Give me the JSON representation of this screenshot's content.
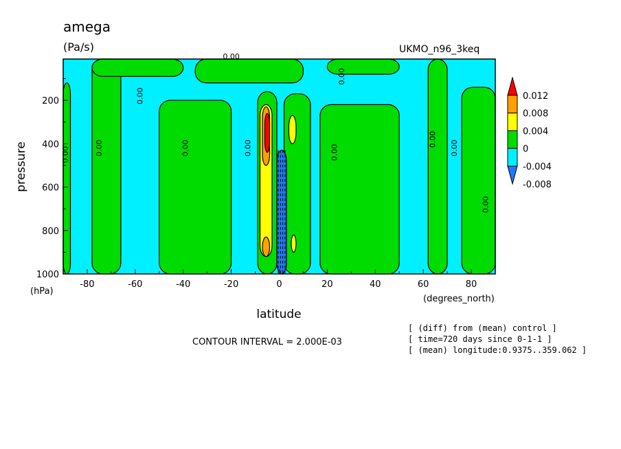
{
  "chart_data": {
    "type": "contour",
    "title": "amega",
    "units": "(Pa/s)",
    "model": "UKMO_n96_3keq",
    "xlabel": "latitude",
    "xunits": "(degrees_north)",
    "ylabel": "pressure",
    "yunits": "(hPa)",
    "xlim": [
      -90,
      90
    ],
    "ylim": [
      1000,
      10
    ],
    "x_ticks": [
      -80,
      -60,
      -40,
      -20,
      0,
      20,
      40,
      60,
      80
    ],
    "x_tick_labels": [
      "-80",
      "-60",
      "-40",
      "-20",
      "0",
      "20",
      "40",
      "60",
      "80"
    ],
    "y_ticks": [
      200,
      400,
      600,
      800,
      1000
    ],
    "y_tick_labels": [
      "200",
      "400",
      "600",
      "800",
      "1000"
    ],
    "contour_interval_text": "CONTOUR INTERVAL = 2.000E-03",
    "contour_label": "0.00",
    "info_lines": [
      "[ (diff) from (mean) control ]",
      "[ time=720 days since 0-1-1 ]",
      "[ (mean) longitude:0.9375..359.062 ]"
    ],
    "colorbar": {
      "levels": [
        -0.008,
        -0.004,
        0,
        0.004,
        0.008,
        0.012
      ],
      "labels": [
        "-0.008",
        "-0.004",
        "0",
        "0.004",
        "0.008",
        "0.012"
      ],
      "colors": [
        "#1e78ff",
        "#00f0ff",
        "#00dc00",
        "#ffff00",
        "#ffa000",
        "#ff0000"
      ]
    },
    "positive_bands": [
      {
        "x0": -90,
        "x1": -87,
        "p0": 120,
        "p1": 1000
      },
      {
        "x0": -78,
        "x1": -66,
        "p0": 10,
        "p1": 1000
      },
      {
        "x0": -50,
        "x1": -20,
        "p0": 200,
        "p1": 1000
      },
      {
        "x0": -9,
        "x1": -1,
        "p0": 160,
        "p1": 1000
      },
      {
        "x0": 2,
        "x1": 13,
        "p0": 170,
        "p1": 1000
      },
      {
        "x0": 17,
        "x1": 50,
        "p0": 220,
        "p1": 1000
      },
      {
        "x0": 62,
        "x1": 70,
        "p0": 10,
        "p1": 1000
      },
      {
        "x0": 76,
        "x1": 90,
        "p0": 140,
        "p1": 1000
      },
      {
        "x0": -78,
        "x1": -40,
        "p0": 10,
        "p1": 90
      },
      {
        "x0": -35,
        "x1": 10,
        "p0": 10,
        "p1": 120
      },
      {
        "x0": 20,
        "x1": 50,
        "p0": 10,
        "p1": 80
      }
    ],
    "yellow_bands": [
      {
        "x0": -8,
        "x1": -3,
        "p0": 220,
        "p1": 920
      },
      {
        "x0": 4,
        "x1": 7,
        "p0": 270,
        "p1": 400
      },
      {
        "x0": 5,
        "x1": 7,
        "p0": 820,
        "p1": 900
      }
    ],
    "orange_bands": [
      {
        "x0": -7,
        "x1": -4,
        "p0": 230,
        "p1": 500
      },
      {
        "x0": -7,
        "x1": -4,
        "p0": 830,
        "p1": 920
      }
    ],
    "red_bands": [
      {
        "x0": -6,
        "x1": -4,
        "p0": 260,
        "p1": 440
      }
    ],
    "blue_bands": [
      {
        "x0": -1,
        "x1": 3,
        "p0": 430,
        "p1": 1000
      }
    ]
  }
}
